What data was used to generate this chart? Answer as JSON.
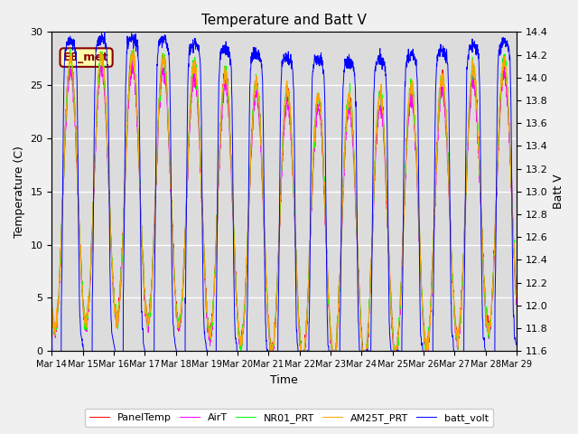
{
  "title": "Temperature and Batt V",
  "xlabel": "Time",
  "ylabel_left": "Temperature (C)",
  "ylabel_right": "Batt V",
  "annotation": "EE_met",
  "ylim_left": [
    0,
    30
  ],
  "ylim_right": [
    11.6,
    14.4
  ],
  "yticks_left": [
    0,
    5,
    10,
    15,
    20,
    25,
    30
  ],
  "yticks_right": [
    11.6,
    11.8,
    12.0,
    12.2,
    12.4,
    12.6,
    12.8,
    13.0,
    13.2,
    13.4,
    13.6,
    13.8,
    14.0,
    14.2,
    14.4
  ],
  "xtick_labels": [
    "Mar 14",
    "Mar 15",
    "Mar 16",
    "Mar 17",
    "Mar 18",
    "Mar 19",
    "Mar 20",
    "Mar 21",
    "Mar 22",
    "Mar 23",
    "Mar 24",
    "Mar 25",
    "Mar 26",
    "Mar 27",
    "Mar 28",
    "Mar 29"
  ],
  "legend_entries": [
    "PanelTemp",
    "AirT",
    "NR01_PRT",
    "AM25T_PRT",
    "batt_volt"
  ],
  "legend_colors": [
    "#ff0000",
    "#ff00ff",
    "#00ff00",
    "#ffa500",
    "#0000ff"
  ],
  "plot_bg_color": "#dcdcdc",
  "fig_bg_color": "#f0f0f0",
  "grid_color": "#ffffff",
  "title_fontsize": 11,
  "axis_fontsize": 9,
  "tick_fontsize": 8,
  "num_points": 2160,
  "days": 15
}
